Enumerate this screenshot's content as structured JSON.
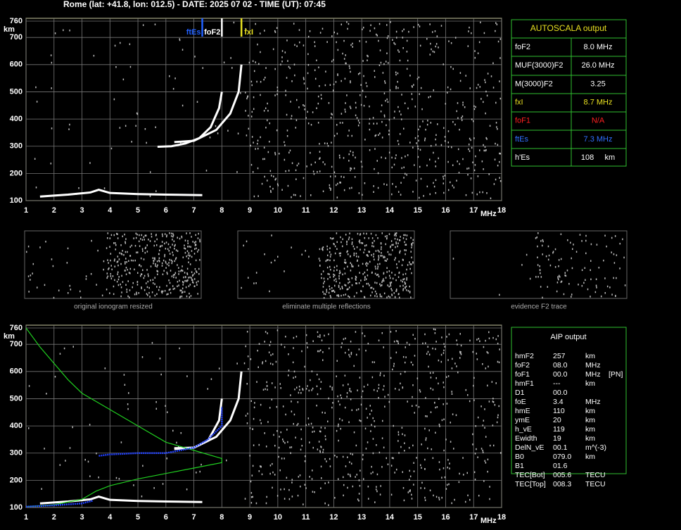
{
  "header": "Rome (lat: +41.8, lon: 012.5) - DATE: 2025 07 02 - TIME (UT): 07:45",
  "autoscala": {
    "title": "AUTOSCALA output",
    "rows": [
      {
        "label": "foF2",
        "value": "8.0 MHz",
        "color": "#ffffff"
      },
      {
        "label": "MUF(3000)F2",
        "value": "26.0 MHz",
        "color": "#ffffff"
      },
      {
        "label": "M(3000)F2",
        "value": "3.25",
        "color": "#ffffff"
      },
      {
        "label": "fxI",
        "value": "8.7 MHz",
        "color": "#e8e020"
      },
      {
        "label": "foF1",
        "value": "N/A",
        "color": "#ff2020"
      },
      {
        "label": "ftEs",
        "value": "7.3 MHz",
        "color": "#3070ff"
      },
      {
        "label": "h'Es",
        "value": "108     km",
        "color": "#ffffff"
      }
    ]
  },
  "thumbnails": [
    "original ionogram resized",
    "eliminate multiple reflections",
    "evidence F2 trace"
  ],
  "aip": {
    "title": "AIP output",
    "rows": [
      [
        "hmF2",
        "257",
        "km"
      ],
      [
        "foF2",
        "08.0",
        "MHz"
      ],
      [
        "foF1",
        "00.0",
        "MHz",
        "[PN]"
      ],
      [
        "hmF1",
        "---",
        "km"
      ],
      [
        "D1",
        "00.0"
      ],
      [
        "foE",
        "3.4",
        "MHz"
      ],
      [
        "hmE",
        "110",
        "km"
      ],
      [
        "ymE",
        "20",
        "km"
      ],
      [
        "h_vE",
        "119",
        "km"
      ],
      [
        "Ewidth",
        "19",
        "km"
      ],
      [
        "DelN_vE",
        "00.1",
        "m^(-3)"
      ],
      [
        "B0",
        "079.0",
        "km"
      ],
      [
        "B1",
        "01.6"
      ],
      [
        "TEC[Bot]",
        "005.6",
        "TECU"
      ],
      [
        "TEC[Top]",
        "008.3",
        "TECU"
      ]
    ]
  },
  "chart_data": [
    {
      "type": "line",
      "xlabel": "MHz",
      "ylabel": "km",
      "xlim": [
        1,
        18
      ],
      "xticks": [
        1,
        2,
        3,
        4,
        5,
        6,
        7,
        8,
        9,
        10,
        11,
        12,
        13,
        14,
        15,
        16,
        17,
        18
      ],
      "ylim": [
        100,
        760
      ],
      "yticks": [
        100,
        200,
        300,
        400,
        500,
        600,
        700,
        760
      ],
      "grid": true,
      "markers": [
        {
          "label": "ftEs",
          "value": 7.3,
          "color": "#2060ff"
        },
        {
          "label": "foF2",
          "value": 8.0,
          "color": "#ffffff"
        },
        {
          "label": "fxI",
          "value": 8.7,
          "color": "#e8e020"
        }
      ],
      "series": [
        {
          "color": "#ffffff",
          "x": [
            1.5,
            2.5,
            3.3,
            3.6,
            4,
            5,
            6,
            7.3
          ],
          "values": [
            115,
            122,
            130,
            140,
            128,
            124,
            122,
            120
          ]
        },
        {
          "color": "#ffffff",
          "x": [
            5.7,
            6.2,
            6.7,
            7.2,
            7.6,
            7.9,
            8.0
          ],
          "values": [
            298,
            300,
            310,
            330,
            370,
            440,
            500
          ]
        },
        {
          "color": "#ffffff",
          "x": [
            6.3,
            7,
            7.8,
            8.3,
            8.6,
            8.7
          ],
          "values": [
            315,
            320,
            360,
            420,
            500,
            600
          ]
        }
      ]
    },
    {
      "type": "line",
      "xlabel": "MHz",
      "ylabel": "km",
      "xlim": [
        1,
        18
      ],
      "xticks": [
        1,
        2,
        3,
        4,
        5,
        6,
        7,
        8,
        9,
        10,
        11,
        12,
        13,
        14,
        15,
        16,
        17,
        18
      ],
      "ylim": [
        100,
        760
      ],
      "yticks": [
        100,
        200,
        300,
        400,
        500,
        600,
        700,
        760
      ],
      "grid": true,
      "series": [
        {
          "color": "#ffffff",
          "x": [
            1.5,
            2.5,
            3.3,
            3.6,
            4,
            5,
            6,
            7.3
          ],
          "values": [
            115,
            122,
            130,
            140,
            128,
            124,
            122,
            120
          ]
        },
        {
          "color": "#ffffff",
          "x": [
            6.3,
            7,
            7.5,
            7.9,
            8.0
          ],
          "values": [
            318,
            320,
            345,
            420,
            500
          ]
        },
        {
          "color": "#ffffff",
          "x": [
            6.3,
            7,
            7.8,
            8.3,
            8.6,
            8.7
          ],
          "values": [
            315,
            320,
            360,
            420,
            500,
            600
          ]
        },
        {
          "color": "#20d020",
          "x": [
            1,
            1.5,
            2,
            2.5,
            3,
            4,
            5,
            6,
            7,
            8,
            8,
            7,
            6,
            5,
            4,
            3.5,
            3,
            2,
            1
          ],
          "values": [
            760,
            690,
            630,
            570,
            520,
            460,
            400,
            340,
            310,
            280,
            265,
            245,
            225,
            205,
            180,
            160,
            130,
            110,
            103
          ]
        },
        {
          "color": "#2040ff",
          "x": [
            1,
            2,
            3,
            3.4,
            null,
            3.6,
            4,
            5,
            6,
            7,
            7.5,
            8,
            8
          ],
          "values": [
            103,
            108,
            115,
            125,
            null,
            290,
            295,
            300,
            300,
            320,
            350,
            400,
            470
          ]
        }
      ]
    }
  ]
}
